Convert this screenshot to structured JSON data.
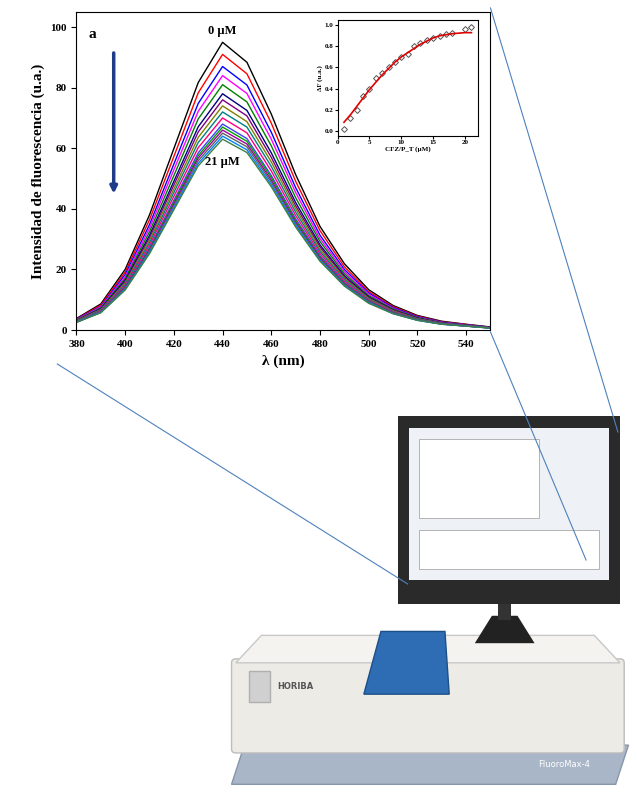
{
  "chart_data": [
    {
      "type": "line",
      "panel_label": "a",
      "x_label": "λ (nm)",
      "y_label": "Intensidad de fluorescencia (u.a.)",
      "annotations": [
        "0 µM",
        "21 µM"
      ],
      "x": [
        380,
        390,
        400,
        410,
        420,
        430,
        440,
        450,
        460,
        470,
        480,
        490,
        500,
        510,
        520,
        530,
        540,
        550
      ],
      "series": [
        {
          "color": "#000000",
          "values": [
            3.8,
            8.6,
            20.0,
            38.0,
            59.9,
            81.7,
            95,
            88.4,
            71.3,
            51.3,
            34.2,
            21.9,
            13.3,
            8.1,
            4.8,
            2.9,
            1.9,
            1.0
          ]
        },
        {
          "color": "#ff0000",
          "values": [
            3.6,
            8.2,
            19.1,
            36.4,
            57.3,
            78.3,
            91,
            84.6,
            68.3,
            49.1,
            32.8,
            20.9,
            12.7,
            7.7,
            4.6,
            2.7,
            1.8,
            0.9
          ]
        },
        {
          "color": "#0000ff",
          "values": [
            3.5,
            7.8,
            18.3,
            34.8,
            54.8,
            74.8,
            87,
            80.9,
            65.3,
            47.0,
            31.3,
            20.0,
            12.2,
            7.4,
            4.4,
            2.6,
            1.7,
            0.9
          ]
        },
        {
          "color": "#ff00ff",
          "values": [
            3.4,
            7.6,
            17.6,
            33.6,
            52.9,
            72.2,
            84,
            78.1,
            63.0,
            45.4,
            30.2,
            19.3,
            11.8,
            7.1,
            4.2,
            2.5,
            1.7,
            0.8
          ]
        },
        {
          "color": "#008000",
          "values": [
            3.2,
            7.3,
            17.0,
            32.4,
            51.0,
            69.7,
            81,
            75.3,
            60.8,
            43.7,
            29.2,
            18.6,
            11.3,
            6.9,
            4.1,
            2.4,
            1.6,
            0.8
          ]
        },
        {
          "color": "#000080",
          "values": [
            3.1,
            7.0,
            16.4,
            31.2,
            49.1,
            67.1,
            78,
            72.5,
            58.5,
            42.1,
            28.1,
            17.9,
            10.9,
            6.6,
            3.9,
            2.3,
            1.6,
            0.8
          ]
        },
        {
          "color": "#800080",
          "values": [
            3.0,
            6.8,
            16.0,
            30.4,
            47.9,
            65.4,
            76,
            70.7,
            57.0,
            41.0,
            27.4,
            17.5,
            10.6,
            6.5,
            3.8,
            2.3,
            1.5,
            0.8
          ]
        },
        {
          "color": "#808000",
          "values": [
            3.0,
            6.7,
            15.5,
            29.6,
            46.6,
            63.6,
            74,
            68.8,
            55.5,
            40.0,
            26.6,
            17.0,
            10.4,
            6.3,
            3.7,
            2.2,
            1.5,
            0.7
          ]
        },
        {
          "color": "#008080",
          "values": [
            2.9,
            6.5,
            15.1,
            28.8,
            45.4,
            61.9,
            72,
            67.0,
            54.0,
            38.9,
            25.9,
            16.6,
            10.1,
            6.1,
            3.6,
            2.2,
            1.4,
            0.7
          ]
        },
        {
          "color": "#ff0080",
          "values": [
            2.8,
            6.3,
            14.7,
            28.0,
            44.1,
            60.2,
            70,
            65.1,
            52.5,
            37.8,
            25.2,
            16.1,
            9.8,
            6.0,
            3.5,
            2.1,
            1.4,
            0.7
          ]
        },
        {
          "color": "#4040ff",
          "values": [
            2.7,
            6.1,
            14.3,
            27.2,
            42.8,
            58.5,
            68,
            63.2,
            51.0,
            36.7,
            24.5,
            15.6,
            9.5,
            5.8,
            3.4,
            2.0,
            1.4,
            0.7
          ]
        },
        {
          "color": "#00a000",
          "values": [
            2.7,
            6.0,
            14.1,
            26.8,
            42.2,
            57.6,
            67,
            62.3,
            50.3,
            36.2,
            24.1,
            15.4,
            9.4,
            5.7,
            3.4,
            2.0,
            1.3,
            0.7
          ]
        },
        {
          "color": "#a000a0",
          "values": [
            2.6,
            5.9,
            13.9,
            26.4,
            41.6,
            56.8,
            66,
            61.4,
            49.5,
            35.6,
            23.8,
            15.2,
            9.2,
            5.6,
            3.3,
            2.0,
            1.3,
            0.7
          ]
        },
        {
          "color": "#606060",
          "values": [
            2.6,
            5.9,
            13.7,
            26.0,
            41.0,
            55.9,
            65,
            60.5,
            48.8,
            35.1,
            23.4,
            15.0,
            9.1,
            5.5,
            3.3,
            2.0,
            1.3,
            0.7
          ]
        },
        {
          "color": "#0080ff",
          "values": [
            2.6,
            5.8,
            13.4,
            25.6,
            40.3,
            55.0,
            64,
            59.5,
            48.0,
            34.6,
            23.0,
            14.7,
            9.0,
            5.4,
            3.2,
            1.9,
            1.3,
            0.6
          ]
        },
        {
          "color": "#408040",
          "values": [
            2.5,
            5.7,
            13.2,
            25.2,
            39.7,
            54.2,
            63,
            58.6,
            47.3,
            34.0,
            22.7,
            14.5,
            8.8,
            5.4,
            3.2,
            1.9,
            1.3,
            0.6
          ]
        }
      ],
      "xlim": [
        380,
        550
      ],
      "ylim": [
        0,
        105
      ],
      "xticks": [
        380,
        400,
        420,
        440,
        460,
        480,
        500,
        520,
        540
      ],
      "yticks": [
        0,
        20,
        40,
        60,
        80,
        100
      ]
    },
    {
      "type": "scatter",
      "x_label": "CFZ/P_T (µM)",
      "y_label": "ΔF (u.a.)",
      "x": [
        1,
        2,
        3,
        4,
        5,
        6,
        7,
        8,
        9,
        10,
        11,
        12,
        13,
        14,
        15,
        16,
        17,
        18,
        20,
        21
      ],
      "series": [
        {
          "type": "scatter",
          "marker": "diamond",
          "color": "#555555",
          "values": [
            0.02,
            0.12,
            0.2,
            0.33,
            0.4,
            0.5,
            0.55,
            0.6,
            0.65,
            0.7,
            0.73,
            0.8,
            0.83,
            0.86,
            0.88,
            0.9,
            0.92,
            0.93,
            0.96,
            0.98
          ]
        },
        {
          "type": "line",
          "color": "#e00000",
          "values": [
            0.08,
            0.15,
            0.23,
            0.31,
            0.39,
            0.46,
            0.53,
            0.59,
            0.65,
            0.7,
            0.74,
            0.78,
            0.82,
            0.85,
            0.88,
            0.9,
            0.91,
            0.92,
            0.93,
            0.93
          ]
        }
      ],
      "xlim": [
        0,
        22
      ],
      "ylim": [
        -0.05,
        1.05
      ],
      "xticks": [
        0,
        5,
        10,
        15,
        20
      ],
      "yticks": [
        {
          "value": 0,
          "label": "0.0"
        },
        0.2,
        0.4,
        0.6,
        0.8,
        {
          "value": 1,
          "label": "1.0"
        }
      ]
    }
  ],
  "instrument": {
    "brand": "HORIBA",
    "model": "FluoroMax-4"
  }
}
